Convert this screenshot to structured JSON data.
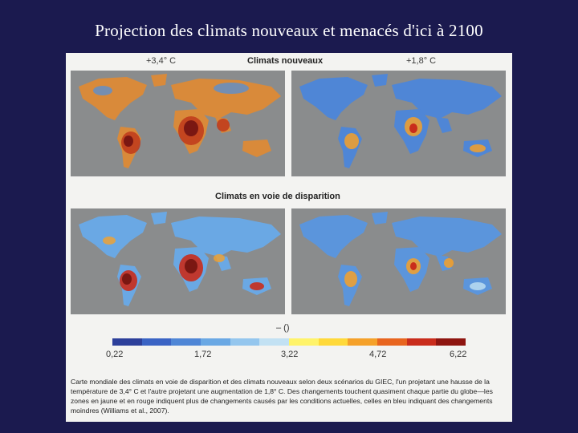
{
  "slide": {
    "title": "Projection des climats nouveaux et menacés d'ici à 2100"
  },
  "figure": {
    "top_heading": "Climats nouveaux",
    "left_scenario": "+3,4° C",
    "right_scenario": "+1,8° C",
    "middle_heading": "Climats en voie de disparition",
    "scale_label": "– ()",
    "scale_ticks": [
      "0,22",
      "1,72",
      "3,22",
      "4,72",
      "6,22"
    ],
    "scale_colors": [
      "#2c3f9a",
      "#3a63c4",
      "#4f86d6",
      "#6aa8e4",
      "#94c6ee",
      "#c2e1f3",
      "#fff36a",
      "#ffd93a",
      "#f5a12a",
      "#e8651f",
      "#c92c1c",
      "#8e1510"
    ],
    "caption": "Carte mondiale des climats en voie de disparition et des climats nouveaux selon deux scénarios du GIEC, l'un projetant une hausse de la température de 3,4° C et l'autre projetant une augmentation de 1,8° C. Des changements touchent quasiment chaque partie du globe—les zones en jaune et en rouge indiquent plus de changements causés par les conditions actuelles, celles en bleu indiquant des changements moindres (Williams et al., 2007)."
  },
  "maps": [
    {
      "name": "map-new-climates-3-4"
    },
    {
      "name": "map-new-climates-1-8"
    },
    {
      "name": "map-disappearing-climates-3-4"
    },
    {
      "name": "map-disappearing-climates-1-8"
    }
  ]
}
